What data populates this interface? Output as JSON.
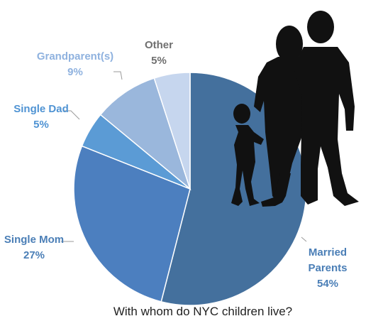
{
  "chart_data": {
    "type": "pie",
    "title": "With whom do NYC children live?",
    "slices": [
      {
        "label": "Married\nParents",
        "value": 54,
        "value_label": "54%",
        "color": "#44709d",
        "label_color": "#4a7eb6"
      },
      {
        "label": "Single Mom",
        "value": 27,
        "value_label": "27%",
        "color": "#4c7fbf",
        "label_color": "#4a7eb6"
      },
      {
        "label": "Single Dad",
        "value": 5,
        "value_label": "5%",
        "color": "#5b9bd5",
        "label_color": "#4f93d3"
      },
      {
        "label": "Grandparent(s)",
        "value": 9,
        "value_label": "9%",
        "color": "#9ab7dc",
        "label_color": "#8fb2df"
      },
      {
        "label": "Other",
        "value": 5,
        "value_label": "5%",
        "color": "#c6d6ee",
        "label_color": "#6f6f6f"
      }
    ],
    "start": "12 o'clock",
    "direction": "clockwise",
    "labels_outside": true,
    "decoration": "family-silhouette-icon"
  }
}
